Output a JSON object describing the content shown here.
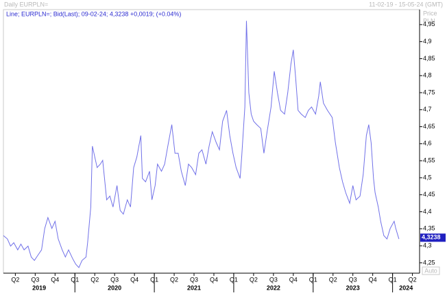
{
  "header": {
    "title": "Daily EURPLN=",
    "range": "11-02-19 - 15-05-24 (GMT)"
  },
  "chart_data": {
    "type": "line",
    "legend_text": "Line; EURPLN=; Bid(Last); 09-02-24; 4,3238 +0,0019; (+0.04%)",
    "axis_title": "Price",
    "axis_unit": "PLN",
    "scale_mode": "Auto",
    "color": "#7070e8",
    "x": [
      2019.1,
      2019.15,
      2019.19,
      2019.23,
      2019.28,
      2019.32,
      2019.36,
      2019.41,
      2019.45,
      2019.49,
      2019.53,
      2019.58,
      2019.62,
      2019.66,
      2019.71,
      2019.75,
      2019.79,
      2019.84,
      2019.88,
      2019.92,
      2019.97,
      2020.01,
      2020.05,
      2020.09,
      2020.14,
      2020.16,
      2020.2,
      2020.22,
      2020.25,
      2020.28,
      2020.32,
      2020.35,
      2020.4,
      2020.44,
      2020.48,
      2020.53,
      2020.57,
      2020.61,
      2020.66,
      2020.7,
      2020.74,
      2020.78,
      2020.83,
      2020.85,
      2020.89,
      2020.94,
      2020.97,
      2021.01,
      2021.04,
      2021.09,
      2021.13,
      2021.17,
      2021.22,
      2021.26,
      2021.3,
      2021.34,
      2021.39,
      2021.43,
      2021.47,
      2021.52,
      2021.56,
      2021.6,
      2021.65,
      2021.69,
      2021.73,
      2021.78,
      2021.82,
      2021.86,
      2021.91,
      2021.95,
      2021.99,
      2022.03,
      2022.08,
      2022.1,
      2022.14,
      2022.16,
      2022.19,
      2022.22,
      2022.25,
      2022.29,
      2022.34,
      2022.38,
      2022.42,
      2022.47,
      2022.51,
      2022.55,
      2022.59,
      2022.64,
      2022.68,
      2022.72,
      2022.75,
      2022.78,
      2022.81,
      2022.85,
      2022.9,
      2022.94,
      2022.98,
      2023.03,
      2023.07,
      2023.09,
      2023.13,
      2023.18,
      2023.24,
      2023.28,
      2023.33,
      2023.37,
      2023.41,
      2023.46,
      2023.5,
      2023.54,
      2023.59,
      2023.63,
      2023.67,
      2023.7,
      2023.73,
      2023.76,
      2023.78,
      2023.82,
      2023.85,
      2023.89,
      2023.93,
      2023.97,
      2024.02,
      2024.04,
      2024.08
    ],
    "values": [
      4.33,
      4.32,
      4.299,
      4.309,
      4.288,
      4.305,
      4.288,
      4.299,
      4.267,
      4.257,
      4.271,
      4.288,
      4.351,
      4.383,
      4.351,
      4.372,
      4.32,
      4.288,
      4.267,
      4.288,
      4.263,
      4.246,
      4.236,
      4.257,
      4.267,
      4.309,
      4.414,
      4.593,
      4.561,
      4.53,
      4.54,
      4.551,
      4.435,
      4.446,
      4.414,
      4.477,
      4.404,
      4.393,
      4.435,
      4.414,
      4.53,
      4.561,
      4.624,
      4.498,
      4.488,
      4.519,
      4.435,
      4.477,
      4.54,
      4.519,
      4.54,
      4.593,
      4.656,
      4.572,
      4.572,
      4.519,
      4.477,
      4.54,
      4.53,
      4.509,
      4.572,
      4.582,
      4.54,
      4.593,
      4.635,
      4.603,
      4.582,
      4.666,
      4.698,
      4.624,
      4.572,
      4.53,
      4.498,
      4.561,
      4.708,
      4.961,
      4.75,
      4.687,
      4.666,
      4.656,
      4.645,
      4.572,
      4.635,
      4.708,
      4.813,
      4.75,
      4.698,
      4.687,
      4.75,
      4.834,
      4.876,
      4.792,
      4.698,
      4.687,
      4.677,
      4.698,
      4.708,
      4.687,
      4.74,
      4.782,
      4.719,
      4.698,
      4.677,
      4.603,
      4.53,
      4.488,
      4.456,
      4.425,
      4.477,
      4.435,
      4.446,
      4.509,
      4.624,
      4.656,
      4.603,
      4.498,
      4.456,
      4.414,
      4.372,
      4.33,
      4.32,
      4.351,
      4.372,
      4.351,
      4.32
    ],
    "last_price": {
      "value": 4.3238,
      "label": "4,3238"
    },
    "xlim": [
      2019.1,
      2024.34
    ],
    "ylim": [
      4.2195,
      4.9941
    ],
    "yticks": [
      {
        "value": 4.25,
        "label": "4,25"
      },
      {
        "value": 4.3,
        "label": "4,3"
      },
      {
        "value": 4.35,
        "label": "4,35"
      },
      {
        "value": 4.4,
        "label": "4,4"
      },
      {
        "value": 4.45,
        "label": "4,45"
      },
      {
        "value": 4.5,
        "label": "4,5"
      },
      {
        "value": 4.55,
        "label": "4,55"
      },
      {
        "value": 4.6,
        "label": "4,6"
      },
      {
        "value": 4.65,
        "label": "4,65"
      },
      {
        "value": 4.7,
        "label": "4,7"
      },
      {
        "value": 4.75,
        "label": "4,75"
      },
      {
        "value": 4.8,
        "label": "4,8"
      },
      {
        "value": 4.85,
        "label": "4,85"
      },
      {
        "value": 4.9,
        "label": "4,9"
      },
      {
        "value": 4.95,
        "label": "4,95"
      }
    ],
    "xticks": [
      {
        "value": 2019.25,
        "label": "Q2"
      },
      {
        "value": 2019.5,
        "label": "Q3"
      },
      {
        "value": 2019.75,
        "label": "Q4"
      },
      {
        "value": 2020.0,
        "label": "Q1"
      },
      {
        "value": 2020.25,
        "label": "Q2"
      },
      {
        "value": 2020.5,
        "label": "Q3"
      },
      {
        "value": 2020.75,
        "label": "Q4"
      },
      {
        "value": 2021.0,
        "label": "Q1"
      },
      {
        "value": 2021.25,
        "label": "Q2"
      },
      {
        "value": 2021.5,
        "label": "Q3"
      },
      {
        "value": 2021.75,
        "label": "Q4"
      },
      {
        "value": 2022.0,
        "label": "Q1"
      },
      {
        "value": 2022.25,
        "label": "Q2"
      },
      {
        "value": 2022.5,
        "label": "Q3"
      },
      {
        "value": 2022.75,
        "label": "Q4"
      },
      {
        "value": 2023.0,
        "label": "Q1"
      },
      {
        "value": 2023.25,
        "label": "Q2"
      },
      {
        "value": 2023.5,
        "label": "Q3"
      },
      {
        "value": 2023.75,
        "label": "Q4"
      },
      {
        "value": 2024.0,
        "label": "Q1"
      },
      {
        "value": 2024.25,
        "label": "Q2"
      }
    ],
    "year_ticks": [
      2019,
      2020,
      2021,
      2022,
      2023,
      2024
    ]
  }
}
